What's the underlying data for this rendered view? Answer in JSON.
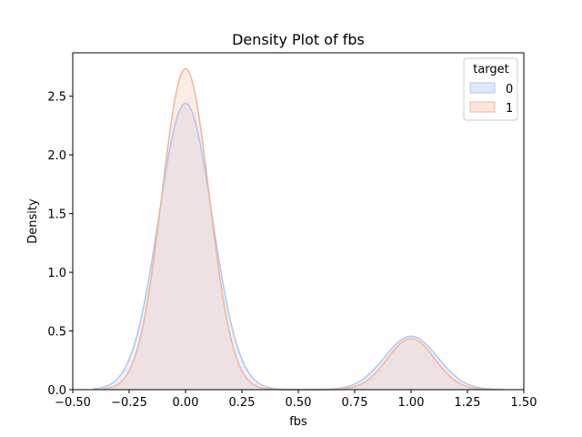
{
  "chart_data": {
    "type": "area",
    "title": "Density Plot of fbs",
    "xlabel": "fbs",
    "ylabel": "Density",
    "xlim": [
      -0.5,
      1.5
    ],
    "ylim": [
      0,
      2.87
    ],
    "xticks": [
      -0.5,
      -0.25,
      0.0,
      0.25,
      0.5,
      0.75,
      1.0,
      1.25,
      1.5
    ],
    "xtick_labels": [
      "−0.50",
      "−0.25",
      "0.00",
      "0.25",
      "0.50",
      "0.75",
      "1.00",
      "1.25",
      "1.50"
    ],
    "yticks": [
      0.0,
      0.5,
      1.0,
      1.5,
      2.0,
      2.5
    ],
    "ytick_labels": [
      "0.0",
      "0.5",
      "1.0",
      "1.5",
      "2.0",
      "2.5"
    ],
    "grid": false,
    "legend": {
      "title": "target",
      "placement": "top-right"
    },
    "series": [
      {
        "name": "0",
        "color": "#aec7f0",
        "fill": "#dde8fb",
        "x_range": [
          -0.41,
          1.41
        ],
        "components": [
          {
            "mean": 0.0,
            "sd": 0.118,
            "peak": 2.44
          },
          {
            "mean": 1.0,
            "sd": 0.118,
            "peak": 0.455
          }
        ]
      },
      {
        "name": "1",
        "color": "#f2b49b",
        "fill": "#fbe6dc",
        "x_range": [
          -0.37,
          1.37
        ],
        "components": [
          {
            "mean": 0.0,
            "sd": 0.105,
            "peak": 2.735
          },
          {
            "mean": 1.0,
            "sd": 0.105,
            "peak": 0.435
          }
        ]
      }
    ]
  }
}
